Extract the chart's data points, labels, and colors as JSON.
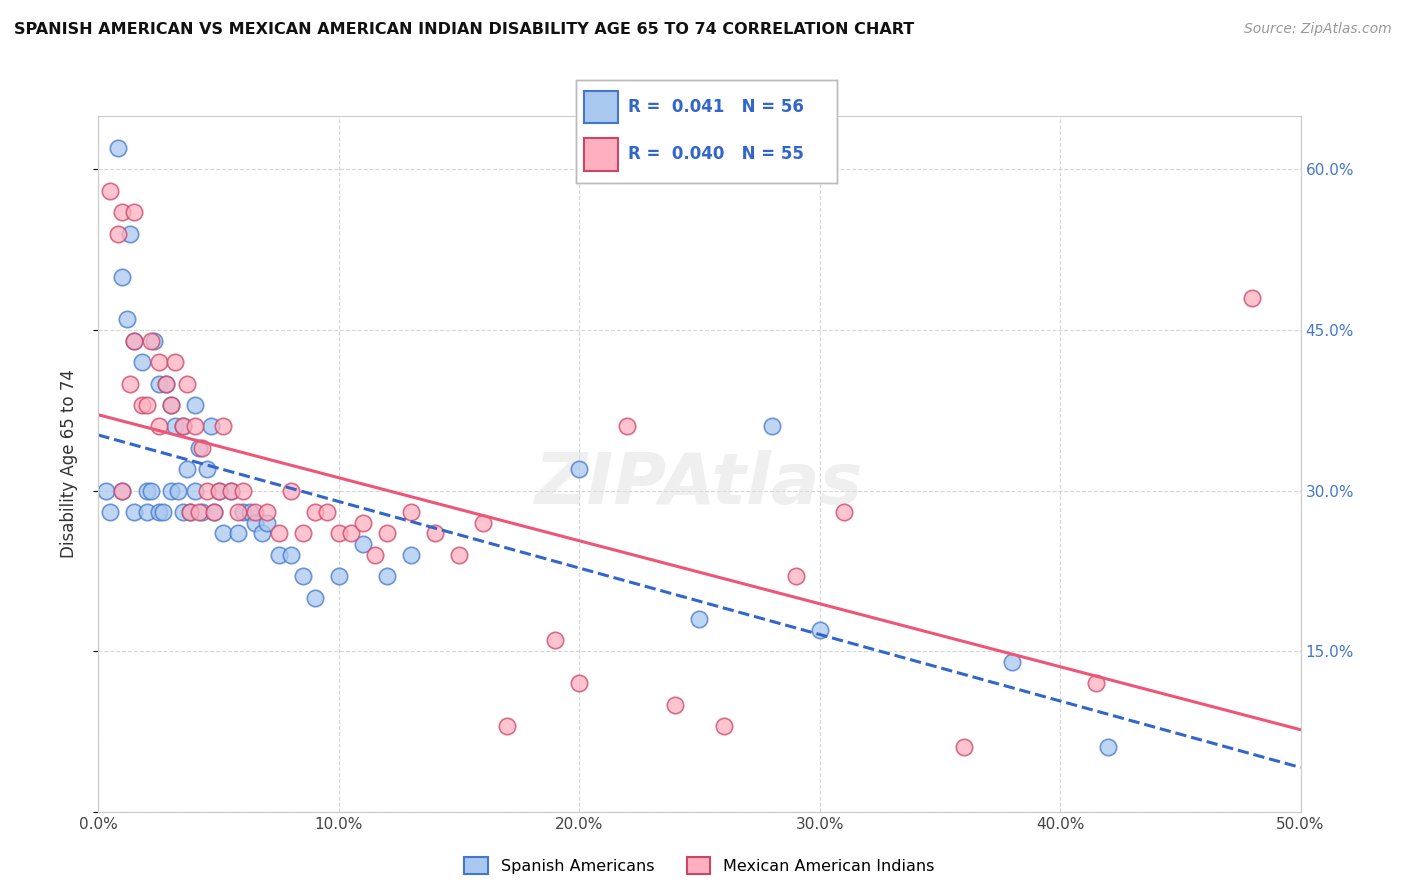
{
  "title": "SPANISH AMERICAN VS MEXICAN AMERICAN INDIAN DISABILITY AGE 65 TO 74 CORRELATION CHART",
  "source": "Source: ZipAtlas.com",
  "ylabel": "Disability Age 65 to 74",
  "xlim": [
    0.0,
    0.5
  ],
  "ylim": [
    0.0,
    0.65
  ],
  "xticks": [
    0.0,
    0.1,
    0.2,
    0.3,
    0.4,
    0.5
  ],
  "xticklabels": [
    "0.0%",
    "10.0%",
    "20.0%",
    "30.0%",
    "40.0%",
    "50.0%"
  ],
  "yticks": [
    0.0,
    0.15,
    0.3,
    0.45,
    0.6
  ],
  "yticklabels": [
    "",
    "15.0%",
    "30.0%",
    "45.0%",
    "60.0%"
  ],
  "blue_R": 0.041,
  "blue_N": 56,
  "pink_R": 0.04,
  "pink_N": 55,
  "blue_fill": "#A8C8F0",
  "blue_edge": "#4477CC",
  "pink_fill": "#FFB0C0",
  "pink_edge": "#CC4466",
  "blue_line": "#3366CC",
  "pink_line": "#EE5577",
  "legend_label_blue": "Spanish Americans",
  "legend_label_pink": "Mexican American Indians",
  "blue_x": [
    0.003,
    0.005,
    0.008,
    0.01,
    0.01,
    0.012,
    0.013,
    0.015,
    0.015,
    0.018,
    0.02,
    0.02,
    0.022,
    0.023,
    0.025,
    0.025,
    0.027,
    0.028,
    0.03,
    0.03,
    0.032,
    0.033,
    0.035,
    0.035,
    0.037,
    0.038,
    0.04,
    0.04,
    0.042,
    0.043,
    0.045,
    0.047,
    0.048,
    0.05,
    0.052,
    0.055,
    0.058,
    0.06,
    0.063,
    0.065,
    0.068,
    0.07,
    0.075,
    0.08,
    0.085,
    0.09,
    0.1,
    0.11,
    0.12,
    0.13,
    0.2,
    0.25,
    0.28,
    0.3,
    0.38,
    0.42
  ],
  "blue_y": [
    0.3,
    0.28,
    0.62,
    0.5,
    0.3,
    0.46,
    0.54,
    0.44,
    0.28,
    0.42,
    0.3,
    0.28,
    0.3,
    0.44,
    0.28,
    0.4,
    0.28,
    0.4,
    0.38,
    0.3,
    0.36,
    0.3,
    0.36,
    0.28,
    0.32,
    0.28,
    0.38,
    0.3,
    0.34,
    0.28,
    0.32,
    0.36,
    0.28,
    0.3,
    0.26,
    0.3,
    0.26,
    0.28,
    0.28,
    0.27,
    0.26,
    0.27,
    0.24,
    0.24,
    0.22,
    0.2,
    0.22,
    0.25,
    0.22,
    0.24,
    0.32,
    0.18,
    0.36,
    0.17,
    0.14,
    0.06
  ],
  "pink_x": [
    0.005,
    0.008,
    0.01,
    0.013,
    0.015,
    0.015,
    0.018,
    0.02,
    0.022,
    0.025,
    0.025,
    0.028,
    0.03,
    0.032,
    0.035,
    0.037,
    0.038,
    0.04,
    0.042,
    0.043,
    0.045,
    0.048,
    0.05,
    0.052,
    0.055,
    0.058,
    0.06,
    0.065,
    0.07,
    0.075,
    0.08,
    0.085,
    0.09,
    0.095,
    0.1,
    0.105,
    0.11,
    0.115,
    0.12,
    0.13,
    0.14,
    0.15,
    0.16,
    0.17,
    0.19,
    0.2,
    0.22,
    0.24,
    0.26,
    0.29,
    0.31,
    0.36,
    0.415,
    0.48,
    0.01
  ],
  "pink_y": [
    0.58,
    0.54,
    0.56,
    0.4,
    0.56,
    0.44,
    0.38,
    0.38,
    0.44,
    0.42,
    0.36,
    0.4,
    0.38,
    0.42,
    0.36,
    0.4,
    0.28,
    0.36,
    0.28,
    0.34,
    0.3,
    0.28,
    0.3,
    0.36,
    0.3,
    0.28,
    0.3,
    0.28,
    0.28,
    0.26,
    0.3,
    0.26,
    0.28,
    0.28,
    0.26,
    0.26,
    0.27,
    0.24,
    0.26,
    0.28,
    0.26,
    0.24,
    0.27,
    0.08,
    0.16,
    0.12,
    0.36,
    0.1,
    0.08,
    0.22,
    0.28,
    0.06,
    0.12,
    0.48,
    0.3
  ]
}
